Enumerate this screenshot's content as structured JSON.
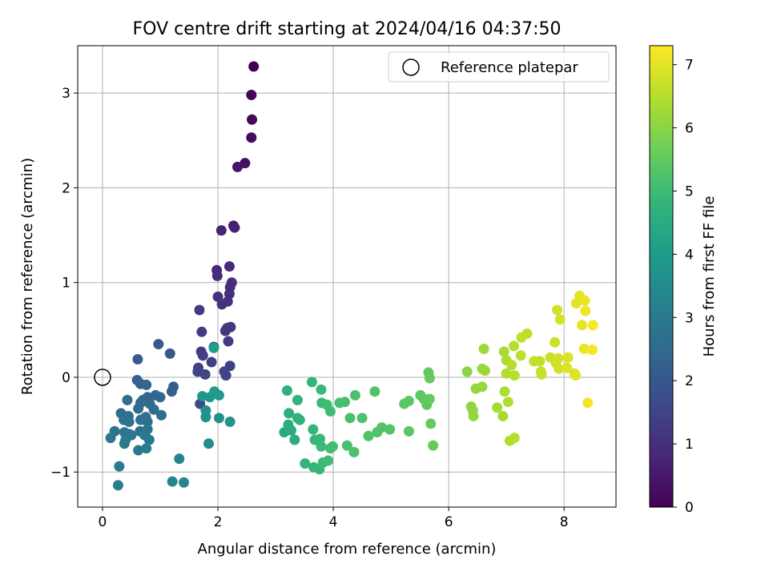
{
  "chart_data": {
    "type": "scatter",
    "title": "FOV centre drift starting at 2024/04/16 04:37:50",
    "xlabel": "Angular distance from reference (arcmin)",
    "ylabel": "Rotation from reference (arcmin)",
    "xlim": [
      -0.43,
      8.9
    ],
    "ylim": [
      -1.37,
      3.5
    ],
    "xticks": [
      0,
      2,
      4,
      6,
      8
    ],
    "xtick_labels": [
      "0",
      "2",
      "4",
      "6",
      "8"
    ],
    "yticks": [
      -1,
      0,
      1,
      2,
      3
    ],
    "ytick_labels": [
      "−1",
      "0",
      "1",
      "2",
      "3"
    ],
    "grid": true,
    "legend": {
      "position": "top-right",
      "entries": [
        "Reference platepar"
      ]
    },
    "reference_point": {
      "x": 0,
      "y": 0,
      "label": "Reference platepar"
    },
    "colorbar": {
      "label": "Hours from first FF file",
      "min": 0,
      "max": 7.3,
      "ticks": [
        0,
        1,
        2,
        3,
        4,
        5,
        6,
        7
      ],
      "tick_labels": [
        "0",
        "1",
        "2",
        "3",
        "4",
        "5",
        "6",
        "7"
      ],
      "colormap": "viridis",
      "colors": [
        "#440154",
        "#482878",
        "#3e4989",
        "#31688e",
        "#26828e",
        "#1f9e89",
        "#35b779",
        "#6ece58",
        "#b5de2b",
        "#fde725"
      ]
    },
    "series": [
      {
        "points": [
          [
            2.62,
            3.28,
            0.0
          ],
          [
            2.58,
            2.98,
            0.08
          ],
          [
            2.59,
            2.72,
            0.15
          ],
          [
            2.58,
            2.53,
            0.22
          ],
          [
            2.47,
            2.26,
            0.3
          ],
          [
            2.34,
            2.22,
            0.38
          ],
          [
            2.27,
            1.6,
            0.6
          ],
          [
            2.29,
            1.58,
            0.65
          ],
          [
            2.06,
            1.55,
            0.7
          ],
          [
            1.98,
            1.13,
            0.8
          ],
          [
            2.2,
            1.17,
            0.85
          ],
          [
            1.99,
            1.07,
            0.9
          ],
          [
            2.24,
            1.0,
            0.93
          ],
          [
            2.21,
            0.95,
            0.96
          ],
          [
            2.2,
            0.88,
            1.0
          ],
          [
            2.17,
            0.8,
            1.03
          ],
          [
            2.0,
            0.85,
            1.06
          ],
          [
            2.07,
            0.77,
            1.1
          ],
          [
            2.22,
            0.53,
            1.15
          ],
          [
            2.16,
            0.52,
            1.18
          ],
          [
            2.13,
            0.49,
            1.2
          ],
          [
            1.68,
            0.71,
            1.25
          ],
          [
            1.72,
            0.48,
            1.28
          ],
          [
            2.18,
            0.38,
            1.3
          ],
          [
            1.71,
            0.27,
            1.33
          ],
          [
            1.93,
            0.32,
            1.36
          ],
          [
            1.74,
            0.23,
            1.38
          ],
          [
            1.89,
            0.16,
            1.4
          ],
          [
            2.21,
            0.12,
            1.42
          ],
          [
            1.66,
            0.1,
            1.45
          ],
          [
            1.65,
            0.06,
            1.48
          ],
          [
            2.11,
            0.06,
            1.5
          ],
          [
            1.78,
            0.03,
            1.52
          ],
          [
            2.14,
            0.02,
            1.55
          ],
          [
            1.69,
            -0.28,
            1.6
          ],
          [
            0.97,
            0.35,
            2.0
          ],
          [
            1.17,
            0.25,
            2.05
          ],
          [
            0.61,
            0.19,
            2.1
          ],
          [
            1.23,
            -0.1,
            2.15
          ],
          [
            1.2,
            -0.15,
            2.2
          ],
          [
            0.6,
            -0.03,
            2.25
          ],
          [
            0.66,
            -0.07,
            2.3
          ],
          [
            0.76,
            -0.08,
            2.35
          ],
          [
            0.78,
            -0.21,
            2.4
          ],
          [
            0.92,
            -0.19,
            2.42
          ],
          [
            1.0,
            -0.21,
            2.45
          ],
          [
            0.7,
            -0.24,
            2.48
          ],
          [
            0.66,
            -0.27,
            2.5
          ],
          [
            0.82,
            -0.28,
            2.52
          ],
          [
            0.43,
            -0.24,
            2.55
          ],
          [
            0.89,
            -0.34,
            2.58
          ],
          [
            0.62,
            -0.33,
            2.6
          ],
          [
            1.02,
            -0.4,
            2.62
          ],
          [
            0.32,
            -0.38,
            2.64
          ],
          [
            0.45,
            -0.41,
            2.66
          ],
          [
            0.75,
            -0.42,
            2.68
          ],
          [
            0.66,
            -0.45,
            2.7
          ],
          [
            0.37,
            -0.45,
            2.72
          ],
          [
            0.46,
            -0.47,
            2.74
          ],
          [
            0.78,
            -0.47,
            2.76
          ],
          [
            0.21,
            -0.57,
            2.78
          ],
          [
            0.65,
            -0.57,
            2.8
          ],
          [
            0.78,
            -0.55,
            2.82
          ],
          [
            0.38,
            -0.58,
            2.84
          ],
          [
            0.46,
            -0.6,
            2.86
          ],
          [
            0.5,
            -0.61,
            2.88
          ],
          [
            0.14,
            -0.64,
            2.9
          ],
          [
            0.73,
            -0.61,
            2.92
          ],
          [
            0.81,
            -0.66,
            2.94
          ],
          [
            0.4,
            -0.66,
            2.96
          ],
          [
            0.38,
            -0.7,
            2.98
          ],
          [
            0.62,
            -0.77,
            3.0
          ],
          [
            0.76,
            -0.75,
            3.02
          ],
          [
            0.29,
            -0.94,
            3.05
          ],
          [
            0.27,
            -1.14,
            3.1
          ],
          [
            1.33,
            -0.86,
            3.3
          ],
          [
            1.21,
            -1.1,
            3.35
          ],
          [
            1.41,
            -1.11,
            3.4
          ],
          [
            1.84,
            -0.7,
            3.6
          ],
          [
            1.79,
            -0.42,
            3.65
          ],
          [
            1.79,
            -0.35,
            3.7
          ],
          [
            2.02,
            -0.43,
            3.75
          ],
          [
            2.21,
            -0.47,
            3.8
          ],
          [
            1.73,
            -0.2,
            3.85
          ],
          [
            1.86,
            -0.21,
            3.9
          ],
          [
            2.02,
            -0.19,
            3.95
          ],
          [
            1.94,
            -0.15,
            4.0
          ],
          [
            1.93,
            0.31,
            4.1
          ],
          [
            3.15,
            -0.58,
            4.4
          ],
          [
            3.27,
            -0.56,
            4.45
          ],
          [
            3.22,
            -0.5,
            4.5
          ],
          [
            3.33,
            -0.66,
            4.55
          ],
          [
            3.23,
            -0.38,
            4.6
          ],
          [
            3.2,
            -0.14,
            4.65
          ],
          [
            3.38,
            -0.43,
            4.7
          ],
          [
            3.42,
            -0.45,
            4.72
          ],
          [
            3.38,
            -0.24,
            4.75
          ],
          [
            3.51,
            -0.91,
            4.78
          ],
          [
            3.63,
            -0.05,
            4.8
          ],
          [
            3.65,
            -0.55,
            4.82
          ],
          [
            3.66,
            -0.95,
            4.84
          ],
          [
            3.68,
            -0.66,
            4.86
          ],
          [
            3.76,
            -0.97,
            4.88
          ],
          [
            3.77,
            -0.65,
            4.9
          ],
          [
            3.79,
            -0.13,
            4.92
          ],
          [
            3.8,
            -0.27,
            4.94
          ],
          [
            3.79,
            -0.73,
            4.96
          ],
          [
            3.82,
            -0.9,
            4.98
          ],
          [
            3.89,
            -0.29,
            5.0
          ],
          [
            3.95,
            -0.36,
            5.02
          ],
          [
            3.91,
            -0.88,
            5.04
          ],
          [
            3.95,
            -0.75,
            5.06
          ],
          [
            3.99,
            -0.73,
            5.08
          ],
          [
            4.11,
            -0.27,
            5.1
          ],
          [
            4.2,
            -0.26,
            5.12
          ],
          [
            4.24,
            -0.72,
            5.14
          ],
          [
            4.29,
            -0.43,
            5.16
          ],
          [
            4.38,
            -0.19,
            5.18
          ],
          [
            4.36,
            -0.79,
            5.2
          ],
          [
            4.5,
            -0.43,
            5.22
          ],
          [
            4.61,
            -0.62,
            5.24
          ],
          [
            4.72,
            -0.15,
            5.26
          ],
          [
            4.76,
            -0.58,
            5.28
          ],
          [
            4.84,
            -0.53,
            5.3
          ],
          [
            4.98,
            -0.55,
            5.32
          ],
          [
            5.23,
            -0.28,
            5.38
          ],
          [
            5.31,
            -0.25,
            5.4
          ],
          [
            5.31,
            -0.57,
            5.42
          ],
          [
            5.51,
            -0.19,
            5.44
          ],
          [
            5.57,
            -0.23,
            5.46
          ],
          [
            5.62,
            -0.29,
            5.48
          ],
          [
            5.65,
            0.05,
            5.5
          ],
          [
            5.67,
            -0.23,
            5.52
          ],
          [
            5.67,
            -0.01,
            5.54
          ],
          [
            5.69,
            -0.49,
            5.56
          ],
          [
            5.73,
            -0.72,
            5.58
          ],
          [
            6.32,
            0.06,
            6.0
          ],
          [
            6.39,
            -0.31,
            6.05
          ],
          [
            6.42,
            -0.35,
            6.08
          ],
          [
            6.43,
            -0.41,
            6.1
          ],
          [
            6.47,
            -0.12,
            6.12
          ],
          [
            6.58,
            -0.1,
            6.15
          ],
          [
            6.58,
            0.09,
            6.18
          ],
          [
            6.63,
            0.07,
            6.2
          ],
          [
            6.61,
            0.3,
            6.22
          ],
          [
            6.84,
            -0.32,
            6.3
          ],
          [
            6.94,
            -0.41,
            6.33
          ],
          [
            6.96,
            0.27,
            6.35
          ],
          [
            6.97,
            -0.15,
            6.38
          ],
          [
            7.0,
            0.18,
            6.4
          ],
          [
            7.0,
            0.04,
            6.42
          ],
          [
            7.03,
            -0.26,
            6.44
          ],
          [
            7.06,
            -0.67,
            6.46
          ],
          [
            7.09,
            0.13,
            6.48
          ],
          [
            7.13,
            0.33,
            6.5
          ],
          [
            7.14,
            -0.64,
            6.52
          ],
          [
            7.14,
            0.02,
            6.54
          ],
          [
            7.25,
            0.23,
            6.56
          ],
          [
            7.26,
            0.42,
            6.6
          ],
          [
            7.36,
            0.46,
            6.62
          ],
          [
            7.48,
            0.17,
            6.64
          ],
          [
            7.58,
            0.17,
            6.66
          ],
          [
            7.6,
            0.06,
            6.68
          ],
          [
            7.61,
            0.03,
            6.7
          ],
          [
            7.76,
            0.21,
            6.74
          ],
          [
            7.84,
            0.37,
            6.76
          ],
          [
            7.86,
            0.15,
            6.78
          ],
          [
            7.88,
            0.71,
            6.8
          ],
          [
            7.9,
            0.2,
            6.82
          ],
          [
            7.91,
            0.09,
            6.84
          ],
          [
            7.93,
            0.61,
            6.86
          ],
          [
            8.05,
            0.1,
            6.9
          ],
          [
            8.07,
            0.21,
            6.92
          ],
          [
            8.18,
            0.04,
            6.95
          ],
          [
            8.2,
            0.02,
            6.97
          ],
          [
            8.21,
            0.78,
            7.0
          ],
          [
            8.27,
            0.86,
            7.03
          ],
          [
            8.31,
            0.55,
            7.05
          ],
          [
            8.35,
            0.3,
            7.08
          ],
          [
            8.36,
            0.81,
            7.1
          ],
          [
            8.37,
            0.7,
            7.13
          ],
          [
            8.41,
            -0.27,
            7.16
          ],
          [
            8.49,
            0.29,
            7.2
          ],
          [
            8.5,
            0.55,
            7.25
          ]
        ]
      }
    ]
  }
}
